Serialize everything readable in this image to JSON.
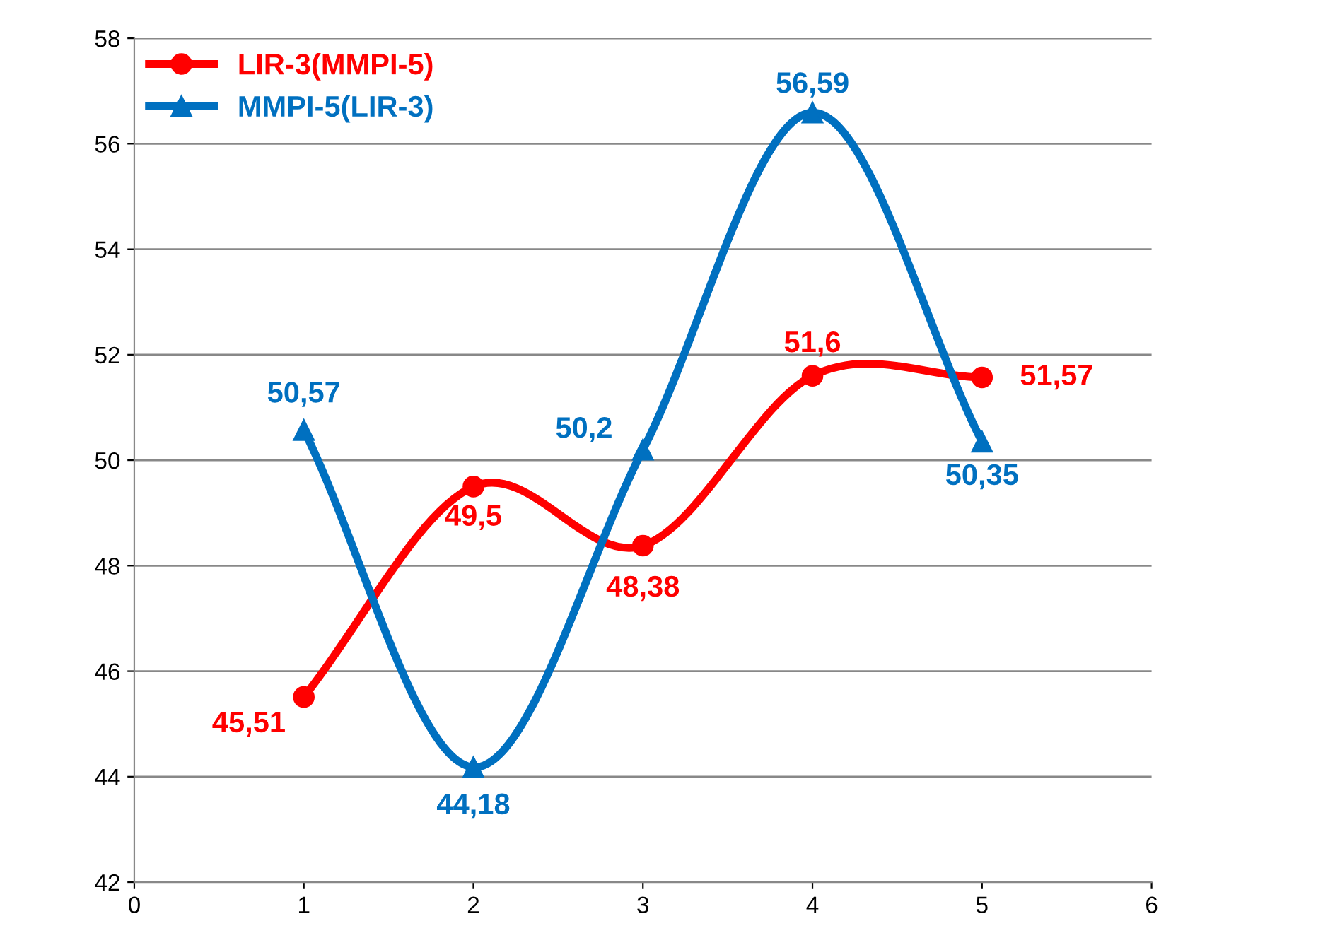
{
  "chart_data": {
    "type": "line",
    "x": [
      1,
      2,
      3,
      4,
      5
    ],
    "series": [
      {
        "name": "LIR-3(MMPI-5)",
        "color": "#ff0000",
        "marker": "circle",
        "values": [
          45.51,
          49.5,
          48.38,
          51.6,
          51.57
        ],
        "value_labels": [
          "45,51",
          "49,5",
          "48,38",
          "51,6",
          "51,57"
        ]
      },
      {
        "name": "MMPI-5(LIR-3)",
        "color": "#0070c0",
        "marker": "triangle",
        "values": [
          50.57,
          44.18,
          50.2,
          56.59,
          50.35
        ],
        "value_labels": [
          "50,57",
          "44,18",
          "50,2",
          "56,59",
          "50,35"
        ]
      }
    ],
    "xlim": [
      0,
      6
    ],
    "xticks": [
      0,
      1,
      2,
      3,
      4,
      5,
      6
    ],
    "ylim": [
      42,
      58
    ],
    "yticks": [
      42,
      44,
      46,
      48,
      50,
      52,
      54,
      56,
      58
    ],
    "grid": "y",
    "legend": "top left"
  }
}
